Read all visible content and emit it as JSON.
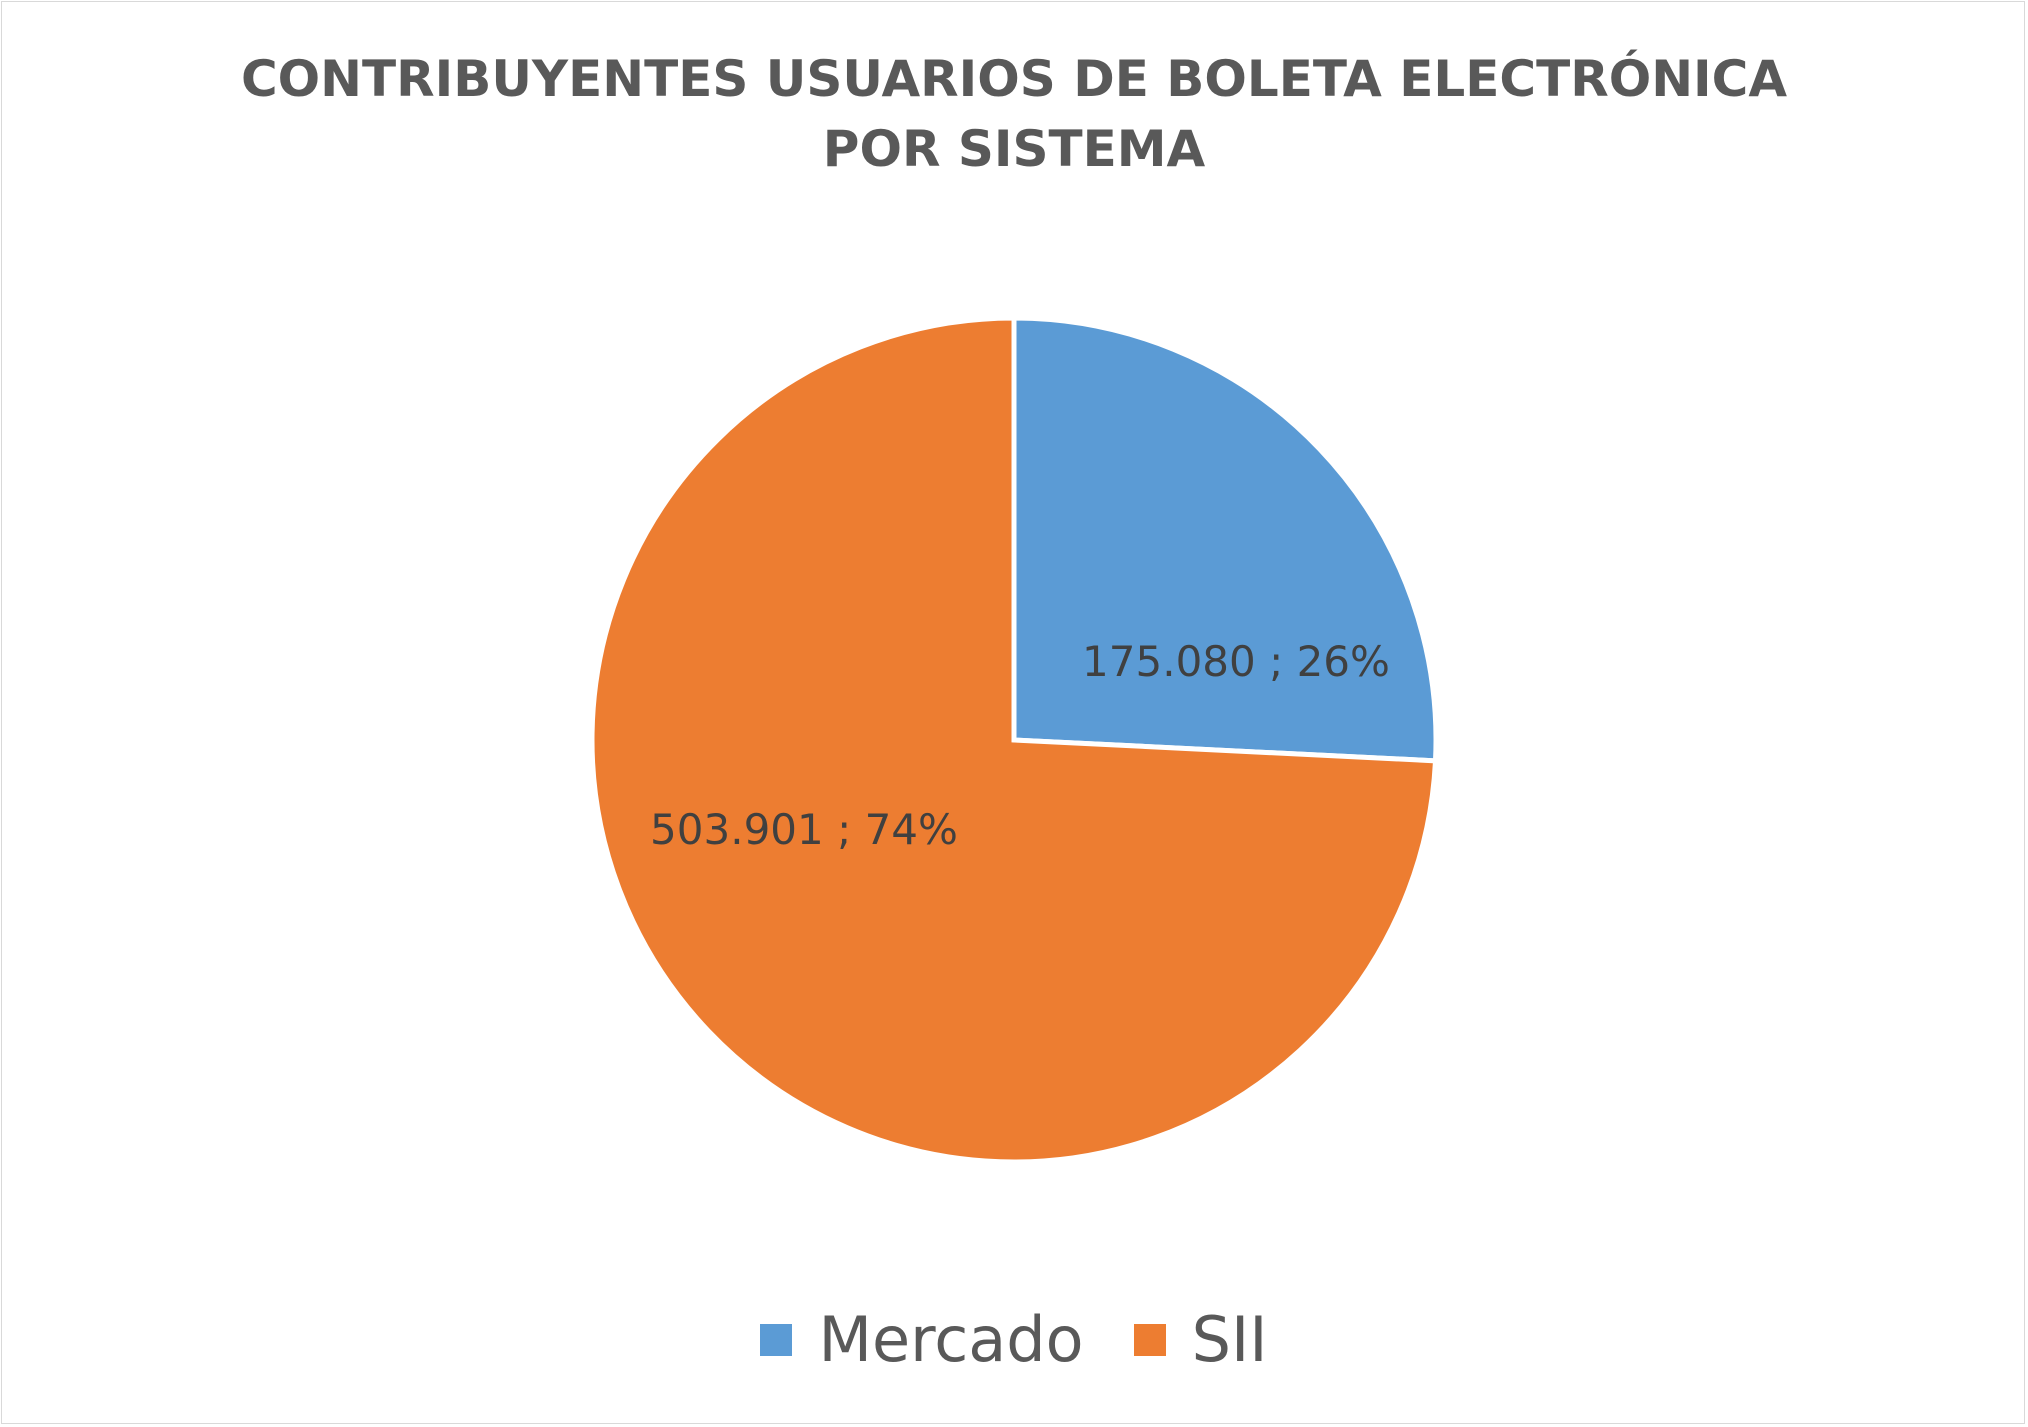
{
  "chart_data": {
    "type": "pie",
    "title": "CONTRIBUYENTES USUARIOS DE BOLETA ELECTRÓNICA POR SISTEMA",
    "slices": [
      {
        "label": "Mercado",
        "value": 175080,
        "percent": 26,
        "data_label": "175.080 ; 26%",
        "color": "#5b9bd5"
      },
      {
        "label": "SII",
        "value": 503901,
        "percent": 74,
        "data_label": "503.901 ; 74%",
        "color": "#ed7d31"
      }
    ],
    "legend_position": "bottom"
  },
  "colors": {
    "title_text": "#595959",
    "label_text": "#404040",
    "separator": "#ffffff"
  }
}
